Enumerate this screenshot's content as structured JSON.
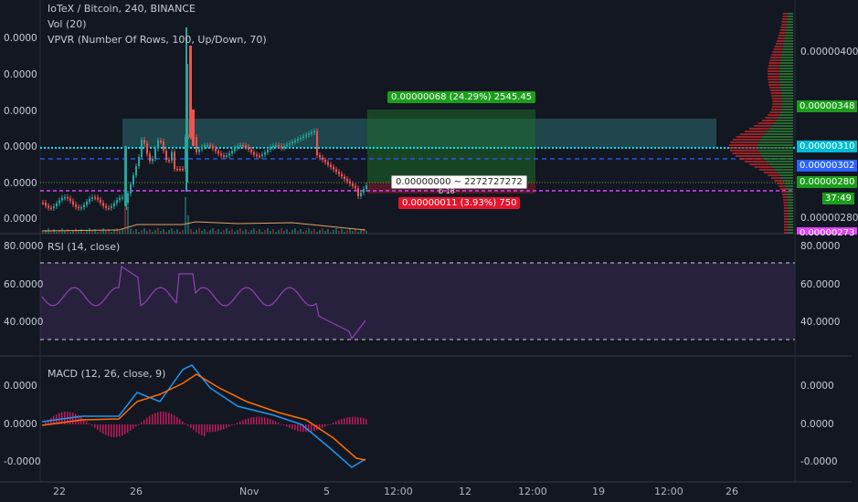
{
  "header": {
    "title": "IoTeX / Bitcoin, 240, BINANCE",
    "vol": "Vol (20)",
    "vpvr": "VPVR (Number Of Rows, 100, Up/Down, 70)"
  },
  "main_pane": {
    "left_ticks": [
      "0.0000",
      "0.0000",
      "0.0000",
      "0.0000",
      "0.0000",
      "0.0000"
    ],
    "right_ticks": [
      "0.00000400",
      "0.00000348",
      "0.00000310",
      "0.00000302",
      "0.00000280",
      "0.00000280"
    ],
    "countdown": "37:49",
    "partial_label": "0.00000273",
    "colors": {
      "up": "#26a69a",
      "down": "#ef5350",
      "profit": "#1b9e1b",
      "loss": "#e4152b",
      "blue_line": "#2962ff",
      "magenta_line": "#e040fb",
      "cyan_line": "#00bcd4"
    }
  },
  "position_tool": {
    "target_label": "0.00000068 (24.29%) 2545.45",
    "center_label": "0.00000000 ~ 2272727272",
    "center_sub": "b 18",
    "stop_label": "0.00000011 (3.93%) 750"
  },
  "rsi_pane": {
    "title": "RSI (14, close)",
    "left_ticks": [
      "80.0000",
      "60.0000",
      "40.0000"
    ],
    "right_ticks": [
      "80.0000",
      "60.0000",
      "40.0000"
    ]
  },
  "macd_pane": {
    "title": "MACD (12, 26, close, 9)",
    "left_ticks": [
      "0.0000",
      "0.0000",
      "-0.0000"
    ],
    "right_ticks": [
      "0.0000",
      "0.0000",
      "-0.0000"
    ]
  },
  "time_axis": {
    "labels": [
      "22",
      "26",
      "Nov",
      "5",
      "12:00",
      "12",
      "12:00",
      "19",
      "12:00",
      "26"
    ]
  }
}
